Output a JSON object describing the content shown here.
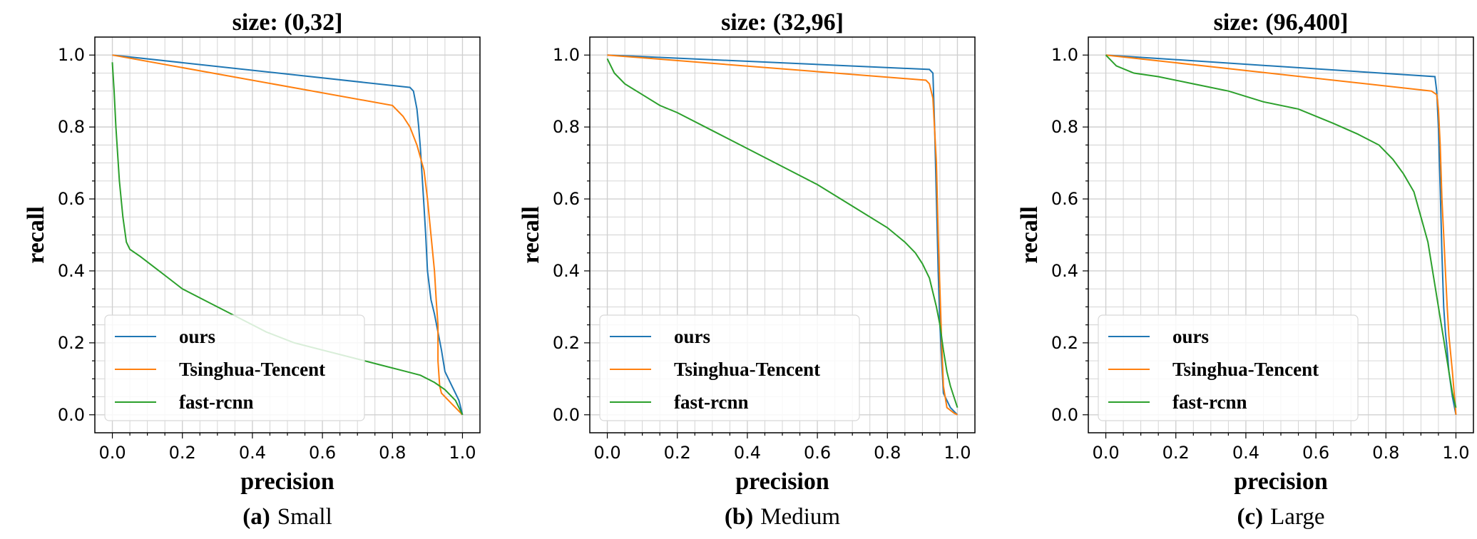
{
  "colors": {
    "ours": "#1f77b4",
    "tsinghua": "#ff7f0e",
    "fastrcnn": "#2ca02c",
    "grid": "#d0d0d0"
  },
  "chart_data": [
    {
      "type": "line",
      "title": "size: (0,32]",
      "caption_letter": "(a)",
      "caption_word": "Small",
      "xlabel": "precision",
      "ylabel": "recall",
      "xlim": [
        -0.05,
        1.05
      ],
      "ylim": [
        -0.05,
        1.05
      ],
      "xticks": [
        "0.0",
        "0.2",
        "0.4",
        "0.6",
        "0.8",
        "1.0"
      ],
      "yticks": [
        "0.0",
        "0.2",
        "0.4",
        "0.6",
        "0.8",
        "1.0"
      ],
      "grid": true,
      "legend": "lower-left",
      "series": [
        {
          "name": "ours",
          "x": [
            0.0,
            0.85,
            0.86,
            0.87,
            0.875,
            0.88,
            0.885,
            0.89,
            0.895,
            0.9,
            0.91,
            0.92,
            0.93,
            0.94,
            0.95,
            0.97,
            0.99,
            1.0
          ],
          "y": [
            1.0,
            0.91,
            0.9,
            0.85,
            0.8,
            0.74,
            0.66,
            0.58,
            0.5,
            0.4,
            0.32,
            0.28,
            0.23,
            0.18,
            0.12,
            0.08,
            0.04,
            0.0
          ]
        },
        {
          "name": "Tsinghua-Tencent",
          "x": [
            0.0,
            0.8,
            0.83,
            0.85,
            0.87,
            0.89,
            0.9,
            0.91,
            0.92,
            0.925,
            0.93,
            0.93,
            0.935,
            0.94,
            0.96,
            0.98,
            1.0
          ],
          "y": [
            1.0,
            0.86,
            0.83,
            0.8,
            0.75,
            0.68,
            0.6,
            0.5,
            0.4,
            0.32,
            0.25,
            0.15,
            0.08,
            0.06,
            0.04,
            0.02,
            0.0
          ]
        },
        {
          "name": "fast-rcnn",
          "x": [
            0.0,
            0.005,
            0.01,
            0.02,
            0.03,
            0.04,
            0.05,
            0.08,
            0.12,
            0.16,
            0.2,
            0.28,
            0.36,
            0.44,
            0.52,
            0.6,
            0.68,
            0.76,
            0.84,
            0.88,
            0.92,
            0.95,
            0.98,
            1.0
          ],
          "y": [
            0.98,
            0.9,
            0.8,
            0.65,
            0.55,
            0.48,
            0.46,
            0.44,
            0.41,
            0.38,
            0.35,
            0.31,
            0.27,
            0.23,
            0.2,
            0.18,
            0.16,
            0.14,
            0.12,
            0.11,
            0.09,
            0.07,
            0.04,
            0.0
          ]
        }
      ]
    },
    {
      "type": "line",
      "title": "size: (32,96]",
      "caption_letter": "(b)",
      "caption_word": "Medium",
      "xlabel": "precision",
      "ylabel": "recall",
      "xlim": [
        -0.05,
        1.05
      ],
      "ylim": [
        -0.05,
        1.05
      ],
      "xticks": [
        "0.0",
        "0.2",
        "0.4",
        "0.6",
        "0.8",
        "1.0"
      ],
      "yticks": [
        "0.0",
        "0.2",
        "0.4",
        "0.6",
        "0.8",
        "1.0"
      ],
      "grid": true,
      "legend": "lower-left",
      "series": [
        {
          "name": "ours",
          "x": [
            0.0,
            0.92,
            0.93,
            0.935,
            0.94,
            0.945,
            0.95,
            0.955,
            0.96,
            0.97,
            0.98,
            1.0
          ],
          "y": [
            1.0,
            0.96,
            0.95,
            0.8,
            0.6,
            0.4,
            0.25,
            0.15,
            0.06,
            0.04,
            0.02,
            0.0
          ]
        },
        {
          "name": "Tsinghua-Tencent",
          "x": [
            0.0,
            0.91,
            0.92,
            0.93,
            0.94,
            0.945,
            0.95,
            0.955,
            0.96,
            0.97,
            0.99,
            1.0
          ],
          "y": [
            1.0,
            0.93,
            0.92,
            0.88,
            0.7,
            0.5,
            0.35,
            0.2,
            0.08,
            0.02,
            0.005,
            0.0
          ]
        },
        {
          "name": "fast-rcnn",
          "x": [
            0.0,
            0.02,
            0.05,
            0.1,
            0.15,
            0.2,
            0.3,
            0.4,
            0.5,
            0.6,
            0.7,
            0.8,
            0.85,
            0.88,
            0.9,
            0.92,
            0.94,
            0.95,
            0.96,
            0.97,
            0.98,
            0.99,
            1.0
          ],
          "y": [
            0.99,
            0.95,
            0.92,
            0.89,
            0.86,
            0.84,
            0.79,
            0.74,
            0.69,
            0.64,
            0.58,
            0.52,
            0.48,
            0.45,
            0.42,
            0.38,
            0.3,
            0.25,
            0.18,
            0.12,
            0.08,
            0.05,
            0.02
          ]
        }
      ]
    },
    {
      "type": "line",
      "title": "size: (96,400]",
      "caption_letter": "(c)",
      "caption_word": "Large",
      "xlabel": "precision",
      "ylabel": "recall",
      "xlim": [
        -0.05,
        1.05
      ],
      "ylim": [
        -0.05,
        1.05
      ],
      "xticks": [
        "0.0",
        "0.2",
        "0.4",
        "0.6",
        "0.8",
        "1.0"
      ],
      "yticks": [
        "0.0",
        "0.2",
        "0.4",
        "0.6",
        "0.8",
        "1.0"
      ],
      "grid": true,
      "legend": "lower-left",
      "series": [
        {
          "name": "ours",
          "x": [
            0.0,
            0.94,
            0.945,
            0.95,
            0.955,
            0.96,
            0.965,
            0.97,
            0.975,
            0.98,
            0.99,
            1.0
          ],
          "y": [
            1.0,
            0.94,
            0.9,
            0.8,
            0.63,
            0.45,
            0.3,
            0.23,
            0.18,
            0.12,
            0.05,
            0.0
          ]
        },
        {
          "name": "Tsinghua-Tencent",
          "x": [
            0.0,
            0.93,
            0.945,
            0.95,
            0.955,
            0.96,
            0.965,
            0.97,
            0.975,
            0.98,
            0.99,
            1.0
          ],
          "y": [
            1.0,
            0.9,
            0.89,
            0.85,
            0.75,
            0.6,
            0.5,
            0.4,
            0.3,
            0.22,
            0.12,
            0.0
          ]
        },
        {
          "name": "fast-rcnn",
          "x": [
            0.0,
            0.03,
            0.08,
            0.15,
            0.25,
            0.35,
            0.45,
            0.55,
            0.65,
            0.72,
            0.78,
            0.82,
            0.85,
            0.88,
            0.9,
            0.92,
            0.93,
            0.94,
            0.95,
            0.96,
            0.97,
            0.98,
            0.99,
            1.0
          ],
          "y": [
            1.0,
            0.97,
            0.95,
            0.94,
            0.92,
            0.9,
            0.87,
            0.85,
            0.81,
            0.78,
            0.75,
            0.71,
            0.67,
            0.62,
            0.55,
            0.48,
            0.42,
            0.36,
            0.3,
            0.24,
            0.18,
            0.12,
            0.06,
            0.02
          ]
        }
      ]
    }
  ]
}
